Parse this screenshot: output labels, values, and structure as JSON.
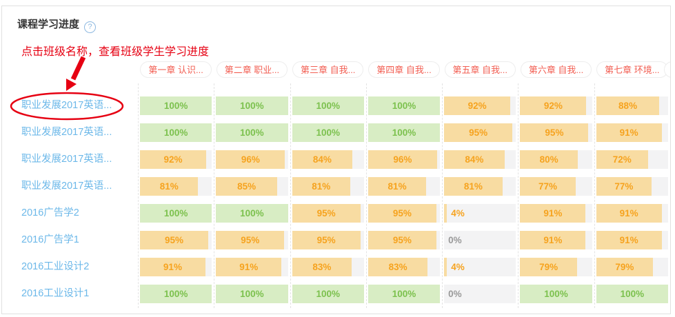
{
  "panel": {
    "title": "课程学习进度",
    "help_icon": "?"
  },
  "annotation": {
    "text": "点击班级名称，查看班级学生学习进度"
  },
  "table": {
    "chapter_headers": [
      "第一章 认识...",
      "第二章 职业...",
      "第三章 自我...",
      "第四章 自我...",
      "第五章 自我...",
      "第六章 自我...",
      "第七章 环境..."
    ],
    "rows": [
      {
        "class_name": "职业发展2017英语...",
        "values": [
          100,
          100,
          100,
          100,
          92,
          92,
          88
        ]
      },
      {
        "class_name": "职业发展2017英语...",
        "values": [
          100,
          100,
          100,
          100,
          95,
          95,
          91
        ]
      },
      {
        "class_name": "职业发展2017英语...",
        "values": [
          92,
          96,
          84,
          96,
          84,
          80,
          72
        ]
      },
      {
        "class_name": "职业发展2017英语...",
        "values": [
          81,
          85,
          81,
          81,
          81,
          77,
          77
        ]
      },
      {
        "class_name": "2016广告学2",
        "values": [
          100,
          100,
          95,
          95,
          4,
          91,
          91
        ]
      },
      {
        "class_name": "2016广告学1",
        "values": [
          95,
          95,
          95,
          95,
          0,
          91,
          91
        ]
      },
      {
        "class_name": "2016工业设计2",
        "values": [
          91,
          91,
          83,
          83,
          4,
          79,
          79
        ]
      },
      {
        "class_name": "2016工业设计1",
        "values": [
          100,
          100,
          100,
          100,
          0,
          100,
          100
        ]
      }
    ],
    "value_suffix": "%"
  },
  "colors": {
    "complete_fill": "#d8edc4",
    "complete_text": "#7cc14e",
    "partial_fill": "#f8dca2",
    "partial_text": "#f6a31f",
    "track": "#f3f3f4",
    "zero_text": "#999999",
    "class_link": "#6cb8e9",
    "chapter_pill_text": "#f25e52",
    "annotation_red": "#e60012"
  }
}
